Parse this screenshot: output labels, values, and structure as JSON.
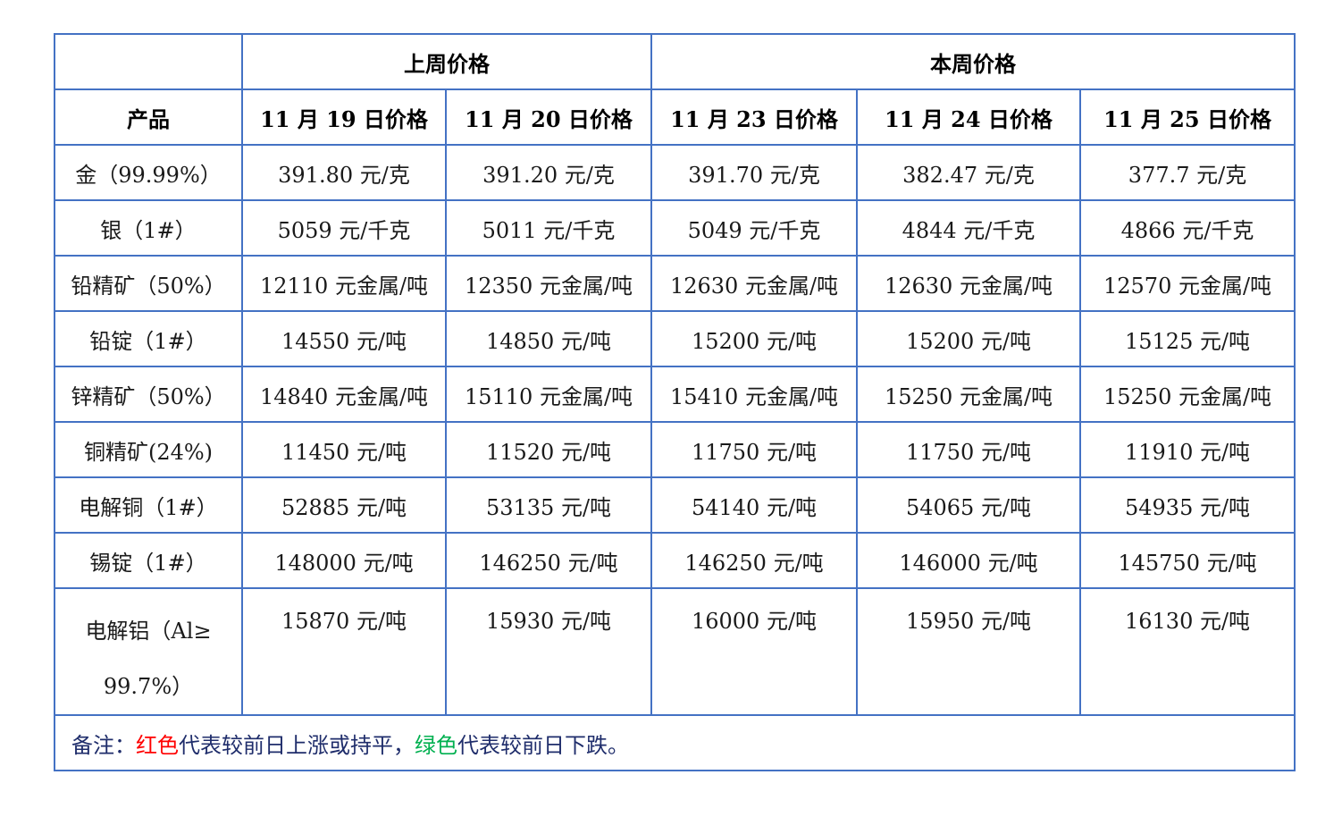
{
  "header": {
    "last_week": "上周价格",
    "this_week": "本周价格",
    "product": "产品",
    "dates": [
      "11 月 19 日价格",
      "11 月 20 日价格",
      "11 月 23 日价格",
      "11 月 24 日价格",
      "11 月 25 日价格"
    ]
  },
  "colors": {
    "up": "#ff0000",
    "down": "#538135",
    "border": "#4472c4"
  },
  "rows": [
    {
      "product": "金（99.99%）",
      "cells": [
        {
          "text": "391.80 元/克",
          "trend": "down"
        },
        {
          "text": "391.20 元/克",
          "trend": "down"
        },
        {
          "text": "391.70 元/克",
          "trend": "up"
        },
        {
          "text": "382.47 元/克",
          "trend": "down"
        },
        {
          "text": "377.7 元/克",
          "trend": "down"
        }
      ]
    },
    {
      "product": "银（1#）",
      "cells": [
        {
          "text": "5059 元/千克",
          "trend": "down"
        },
        {
          "text": "5011 元/千克",
          "trend": "down"
        },
        {
          "text": "5049 元/千克",
          "trend": "up"
        },
        {
          "text": "4844 元/千克",
          "trend": "down"
        },
        {
          "text": "4866 元/千克",
          "trend": "up"
        }
      ]
    },
    {
      "product": "铅精矿（50%）",
      "cells": [
        {
          "text": "12110 元金属/吨",
          "trend": "down"
        },
        {
          "text": "12350 元金属/吨",
          "trend": "up"
        },
        {
          "text": "12630 元金属/吨",
          "trend": "up"
        },
        {
          "text": "12630 元金属/吨",
          "trend": "up"
        },
        {
          "text": "12570 元金属/吨",
          "trend": "down"
        }
      ]
    },
    {
      "product": "铅锭（1#）",
      "cells": [
        {
          "text": "14550 元/吨",
          "trend": "down"
        },
        {
          "text": "14850 元/吨",
          "trend": "up"
        },
        {
          "text": "15200 元/吨",
          "trend": "up"
        },
        {
          "text": "15200 元/吨",
          "trend": "up"
        },
        {
          "text": "15125 元/吨",
          "trend": "down"
        }
      ]
    },
    {
      "product": "锌精矿（50%）",
      "cells": [
        {
          "text": "14840 元金属/吨",
          "trend": "down"
        },
        {
          "text": "15110 元金属/吨",
          "trend": "up"
        },
        {
          "text": "15410 元金属/吨",
          "trend": "up"
        },
        {
          "text": "15250 元金属/吨",
          "trend": "down"
        },
        {
          "text": "15250 元金属/吨",
          "trend": "up"
        }
      ]
    },
    {
      "product": "铜精矿(24%)",
      "cells": [
        {
          "text": "11450 元/吨",
          "trend": "up"
        },
        {
          "text": "11520 元/吨",
          "trend": "up"
        },
        {
          "text": "11750 元/吨",
          "trend": "up"
        },
        {
          "text": "11750 元/吨",
          "trend": "up"
        },
        {
          "text": "11910 元/吨",
          "trend": "up"
        }
      ]
    },
    {
      "product": "电解铜（1#）",
      "cells": [
        {
          "text": "52885 元/吨",
          "trend": "up"
        },
        {
          "text": "53135 元/吨",
          "trend": "up"
        },
        {
          "text": "54140 元/吨",
          "trend": "up"
        },
        {
          "text": "54065 元/吨",
          "trend": "down"
        },
        {
          "text": "54935 元/吨",
          "trend": "up"
        }
      ]
    },
    {
      "product": "锡锭（1#）",
      "cells": [
        {
          "text": "148000 元/吨",
          "trend": "down"
        },
        {
          "text": "146250 元/吨",
          "trend": "down"
        },
        {
          "text": "146250 元/吨",
          "trend": "up"
        },
        {
          "text": "146000 元/吨",
          "trend": "down"
        },
        {
          "text": "145750 元/吨",
          "trend": "down"
        }
      ]
    },
    {
      "product": "电解铝（Al≥ 99.7%）",
      "cells": [
        {
          "text": "15870 元/吨",
          "trend": "up"
        },
        {
          "text": "15930 元/吨",
          "trend": "up"
        },
        {
          "text": "16000 元/吨",
          "trend": "up"
        },
        {
          "text": "15950 元/吨",
          "trend": "down"
        },
        {
          "text": "16130 元/吨",
          "trend": "up"
        }
      ]
    }
  ],
  "note": {
    "prefix": "备注：",
    "red_word": "红色",
    "red_text": "代表较前日上涨或持平，",
    "green_word": "绿色",
    "green_text": "代表较前日下跌。"
  }
}
